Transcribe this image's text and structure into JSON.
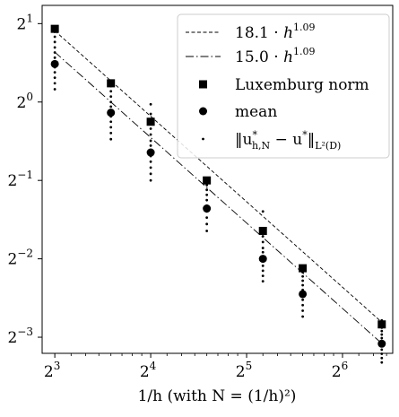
{
  "chart_data": {
    "type": "scatter",
    "xlabel": "1/h (with N = (1/h)²)",
    "x_scale": "log2",
    "y_scale": "log2",
    "xlim": [
      7.3,
      92
    ],
    "ylim": [
      0.1084,
      2.35
    ],
    "x_ticks": [
      {
        "value": 8,
        "base": "2",
        "exp": "3"
      },
      {
        "value": 16,
        "base": "2",
        "exp": "4"
      },
      {
        "value": 32,
        "base": "2",
        "exp": "5"
      },
      {
        "value": 64,
        "base": "2",
        "exp": "6"
      }
    ],
    "y_ticks": [
      {
        "value": 2,
        "base": "2",
        "exp": "1"
      },
      {
        "value": 1,
        "base": "2",
        "exp": "0"
      },
      {
        "value": 0.5,
        "base": "2",
        "exp": "−1"
      },
      {
        "value": 0.25,
        "base": "2",
        "exp": "−2"
      },
      {
        "value": 0.125,
        "base": "2",
        "exp": "−3"
      }
    ],
    "grid": false,
    "legend_position": "top-right",
    "series": [
      {
        "name": "18.1 · h^1.09",
        "label": {
          "prefix": "18.1 · ",
          "var": "h",
          "sup": "1.09"
        },
        "kind": "line",
        "line_style": "dashed",
        "coef": 18.1,
        "exponent": 1.09,
        "x_range": [
          8,
          85
        ]
      },
      {
        "name": "15.0 · h^1.09",
        "label": {
          "prefix": "15.0 · ",
          "var": "h",
          "sup": "1.09"
        },
        "kind": "line",
        "line_style": "dashdot",
        "coef": 15.0,
        "exponent": 1.09,
        "x_range": [
          8,
          85
        ]
      },
      {
        "name": "Luxemburg norm",
        "label": {
          "text": "Luxemburg norm"
        },
        "kind": "marker",
        "marker": "square",
        "x": [
          8,
          12,
          16,
          24,
          36,
          48,
          85
        ],
        "y": [
          1.91,
          1.18,
          0.84,
          0.5,
          0.32,
          0.23,
          0.14
        ]
      },
      {
        "name": "mean",
        "label": {
          "text": "mean"
        },
        "kind": "marker",
        "marker": "circle",
        "x": [
          8,
          12,
          16,
          24,
          36,
          48,
          85
        ],
        "y": [
          1.4,
          0.91,
          0.64,
          0.39,
          0.25,
          0.183,
          0.118
        ]
      },
      {
        "name": "‖u*h,N − u*‖L²(D)",
        "label": {
          "math": true
        },
        "kind": "samples",
        "marker": "dot",
        "x": [
          8,
          12,
          16,
          24,
          36,
          48,
          85
        ],
        "samples": [
          [
            1.12,
            1.18,
            1.24,
            1.3,
            1.36,
            1.42,
            1.48,
            1.55,
            1.62,
            1.7,
            1.78,
            1.86,
            1.9
          ],
          [
            0.72,
            0.76,
            0.8,
            0.84,
            0.88,
            0.92,
            0.96,
            1.0,
            1.05,
            1.1,
            1.15
          ],
          [
            0.5,
            0.53,
            0.56,
            0.59,
            0.62,
            0.65,
            0.68,
            0.71,
            0.75,
            0.79,
            0.83,
            0.9,
            0.98
          ],
          [
            0.32,
            0.34,
            0.36,
            0.38,
            0.4,
            0.42,
            0.44,
            0.46,
            0.48
          ],
          [
            0.205,
            0.215,
            0.225,
            0.235,
            0.245,
            0.255,
            0.265,
            0.275,
            0.29,
            0.305,
            0.32,
            0.38
          ],
          [
            0.15,
            0.158,
            0.166,
            0.174,
            0.182,
            0.19,
            0.198,
            0.206,
            0.214,
            0.222,
            0.23
          ],
          [
            0.1,
            0.104,
            0.108,
            0.112,
            0.116,
            0.12,
            0.124,
            0.128,
            0.132,
            0.136,
            0.14,
            0.145
          ]
        ]
      }
    ]
  }
}
